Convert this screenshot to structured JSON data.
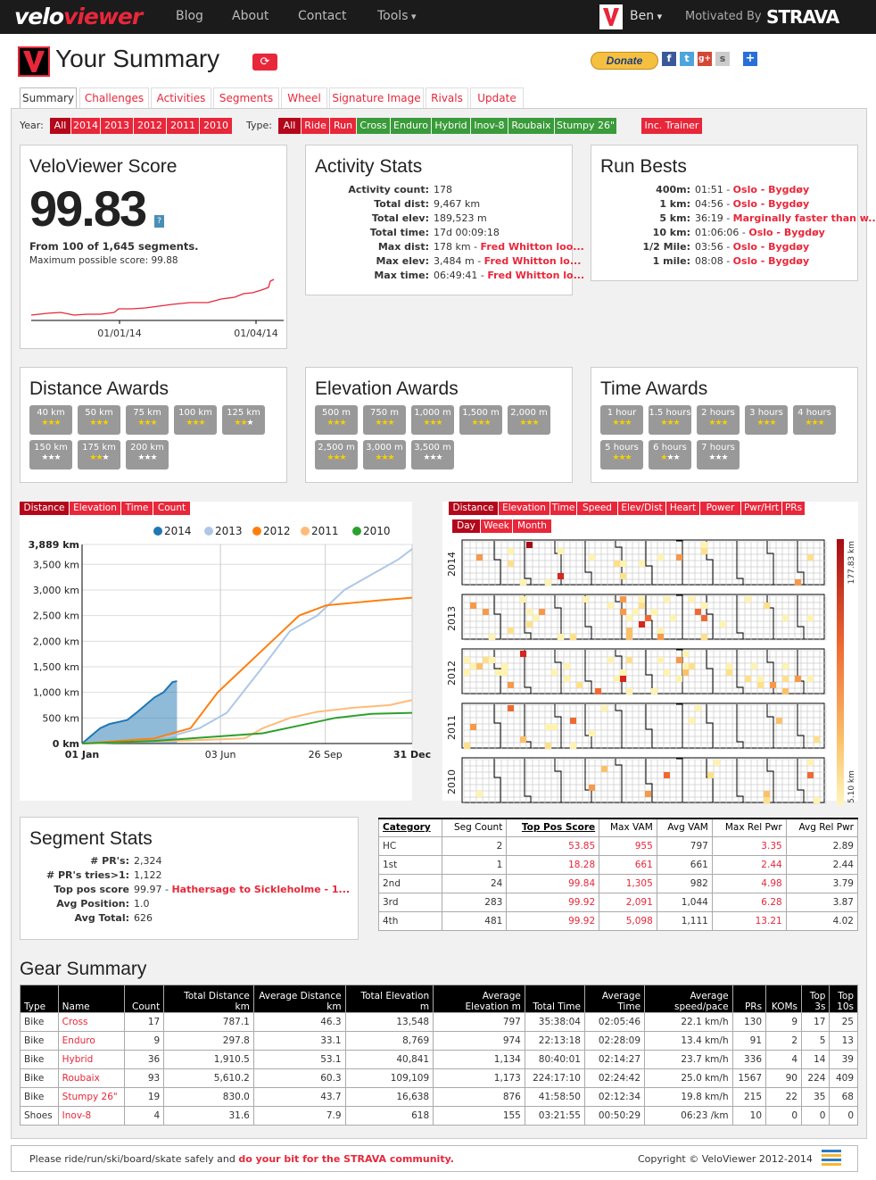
{
  "nav": {
    "brand_a": "velo",
    "brand_b": "viewer",
    "links": [
      "Blog",
      "About",
      "Contact",
      "Tools"
    ],
    "user": "Ben",
    "motivated": "Motivated By",
    "strava": "STRAVA"
  },
  "page": {
    "title": "Your Summary",
    "refresh_icon": "refresh-icon",
    "donate": "Donate",
    "social": [
      "f",
      "t",
      "g+",
      "s",
      "+"
    ]
  },
  "tabs": [
    "Summary",
    "Challenges",
    "Activities",
    "Segments",
    "Wheel",
    "Signature Image",
    "Rivals",
    "Update"
  ],
  "filters": {
    "year_label": "Year:",
    "years": [
      "All",
      "2014",
      "2013",
      "2012",
      "2011",
      "2010"
    ],
    "type_label": "Type:",
    "types": [
      "All",
      "Ride",
      "Run",
      "Cross",
      "Enduro",
      "Hybrid",
      "Inov-8",
      "Roubaix",
      "Stumpy 26\""
    ],
    "trainer": "Inc. Trainer"
  },
  "score": {
    "title": "VeloViewer Score",
    "value": "99.83",
    "help": "?",
    "from": "From 100 of 1,645 segments.",
    "max": "Maximum possible score: 99.88",
    "axis": [
      "01/01/14",
      "01/04/14"
    ]
  },
  "activity": {
    "title": "Activity Stats",
    "rows": [
      {
        "k": "Activity count:",
        "v": "178",
        "l": ""
      },
      {
        "k": "Total dist:",
        "v": "9,467 km",
        "l": ""
      },
      {
        "k": "Total elev:",
        "v": "189,523 m",
        "l": ""
      },
      {
        "k": "Total time:",
        "v": "17d 00:09:18",
        "l": ""
      },
      {
        "k": "Max dist:",
        "v": "178 km - ",
        "l": "Fred Whitton loo..."
      },
      {
        "k": "Max elev:",
        "v": "3,484 m - ",
        "l": "Fred Whitton lo..."
      },
      {
        "k": "Max time:",
        "v": "06:49:41 - ",
        "l": "Fred Whitton lo..."
      }
    ]
  },
  "runbests": {
    "title": "Run Bests",
    "rows": [
      {
        "k": "400m:",
        "v": "01:51 - ",
        "l": "Oslo - Bygdøy"
      },
      {
        "k": "1 km:",
        "v": "04:56 - ",
        "l": "Oslo - Bygdøy"
      },
      {
        "k": "5 km:",
        "v": "36:19 - ",
        "l": "Marginally faster than w..."
      },
      {
        "k": "10 km:",
        "v": "01:06:06 - ",
        "l": "Oslo - Bygdøy"
      },
      {
        "k": "1/2 Mile:",
        "v": "03:56 - ",
        "l": "Oslo - Bygdøy"
      },
      {
        "k": "1 mile:",
        "v": "08:08 - ",
        "l": "Oslo - Bygdøy"
      }
    ]
  },
  "dist_awards": {
    "title": "Distance Awards",
    "items": [
      [
        "40 km",
        "★★★"
      ],
      [
        "50 km",
        "★★★"
      ],
      [
        "75 km",
        "★★★"
      ],
      [
        "100 km",
        "★★★"
      ],
      [
        "125 km",
        "★★★"
      ],
      [
        "150 km",
        "★★★"
      ],
      [
        "175 km",
        "★★★"
      ],
      [
        "200 km",
        "★★★"
      ]
    ],
    "gold": [
      3,
      3,
      3,
      3,
      2,
      0,
      2,
      0
    ]
  },
  "elev_awards": {
    "title": "Elevation Awards",
    "items": [
      [
        "500 m",
        "★★★"
      ],
      [
        "750 m",
        "★★★"
      ],
      [
        "1,000 m",
        "★★★"
      ],
      [
        "1,500 m",
        "★★★"
      ],
      [
        "2,000 m",
        "★★★"
      ],
      [
        "2,500 m",
        "★★★"
      ],
      [
        "3,000 m",
        "★★★"
      ],
      [
        "3,500 m",
        "★★★"
      ]
    ],
    "gold": [
      3,
      3,
      3,
      3,
      3,
      3,
      3,
      0
    ]
  },
  "time_awards": {
    "title": "Time Awards",
    "items": [
      [
        "1 hour",
        "★★★"
      ],
      [
        "1.5 hours",
        "★★★"
      ],
      [
        "2 hours",
        "★★★"
      ],
      [
        "3 hours",
        "★★★"
      ],
      [
        "4 hours",
        "★★★"
      ],
      [
        "5 hours",
        "★★★"
      ],
      [
        "6 hours",
        "★★★"
      ],
      [
        "7 hours",
        "★★★"
      ]
    ],
    "gold": [
      3,
      3,
      3,
      3,
      3,
      3,
      1,
      0
    ]
  },
  "cum_tabs": [
    "Distance",
    "Elevation",
    "Time",
    "Count"
  ],
  "heat_tabs": [
    "Distance",
    "Elevation",
    "Time",
    "Speed",
    "Elev/Dist",
    "Heart",
    "Power",
    "Pwr/Hrt",
    "PRs"
  ],
  "heat_subtabs": [
    "Day",
    "Week",
    "Month"
  ],
  "heat": {
    "years": [
      "2014",
      "2013",
      "2012",
      "2011",
      "2010"
    ],
    "scale_max": "177.83 km",
    "scale_min": "5.10 km"
  },
  "chart_data": [
    {
      "type": "line",
      "ylabel": "",
      "yticks": [
        "3,889 km",
        "3,500 km",
        "3,000 km",
        "2,500 km",
        "2,000 km",
        "1,500 km",
        "1,000 km",
        "500 km",
        "0 km"
      ],
      "ylim": [
        0,
        3889
      ],
      "xticks": [
        "01 Jan",
        "03 Jun",
        "26 Sep",
        "31 Dec"
      ],
      "legend": "top",
      "series": [
        {
          "name": "2014",
          "color": "#1f77b4",
          "x": [
            0,
            10,
            20,
            30,
            40,
            50,
            60,
            70,
            80,
            90,
            100,
            105
          ],
          "y": [
            0,
            150,
            300,
            380,
            420,
            460,
            600,
            750,
            900,
            1000,
            1200,
            1220
          ]
        },
        {
          "name": "2013",
          "color": "#aec7e8",
          "x": [
            0,
            50,
            100,
            130,
            160,
            200,
            230,
            260,
            290,
            320,
            350,
            365
          ],
          "y": [
            0,
            50,
            150,
            300,
            600,
            1500,
            2200,
            2500,
            3000,
            3300,
            3600,
            3800
          ]
        },
        {
          "name": "2012",
          "color": "#ff7f0e",
          "x": [
            0,
            80,
            120,
            150,
            180,
            210,
            240,
            270,
            300,
            330,
            365
          ],
          "y": [
            0,
            100,
            300,
            1000,
            1500,
            2000,
            2500,
            2700,
            2750,
            2800,
            2850
          ]
        },
        {
          "name": "2011",
          "color": "#ffbb78",
          "x": [
            0,
            100,
            180,
            200,
            230,
            260,
            300,
            340,
            365
          ],
          "y": [
            0,
            50,
            100,
            300,
            500,
            620,
            700,
            750,
            850
          ]
        },
        {
          "name": "2010",
          "color": "#2ca02c",
          "x": [
            0,
            80,
            160,
            200,
            240,
            280,
            320,
            365
          ],
          "y": [
            0,
            50,
            150,
            200,
            350,
            500,
            580,
            600
          ]
        }
      ]
    }
  ],
  "segstats": {
    "title": "Segment Stats",
    "rows": [
      {
        "k": "# PR's:",
        "v": "2,324",
        "l": ""
      },
      {
        "k": "# PR's tries>1:",
        "v": "1,122",
        "l": ""
      },
      {
        "k": "Top pos score",
        "v": "99.97 - ",
        "l": "Hathersage to Sickleholme - 1..."
      },
      {
        "k": "Avg Position:",
        "v": "1.0",
        "l": ""
      },
      {
        "k": "Avg Total:",
        "v": "626",
        "l": ""
      }
    ]
  },
  "cat_table": {
    "headers": [
      "Category",
      "Seg Count",
      "Top Pos Score",
      "Max VAM",
      "Avg VAM",
      "Max Rel Pwr",
      "Avg Rel Pwr"
    ],
    "rows": [
      [
        "HC",
        "2",
        "53.85",
        "955",
        "797",
        "3.35",
        "2.89"
      ],
      [
        "1st",
        "1",
        "18.28",
        "661",
        "661",
        "2.44",
        "2.44"
      ],
      [
        "2nd",
        "24",
        "99.84",
        "1,305",
        "982",
        "4.98",
        "3.79"
      ],
      [
        "3rd",
        "283",
        "99.92",
        "2,091",
        "1,044",
        "6.28",
        "3.87"
      ],
      [
        "4th",
        "481",
        "99.92",
        "5,098",
        "1,111",
        "13.21",
        "4.02"
      ]
    ]
  },
  "gear": {
    "title": "Gear Summary",
    "headers": [
      "Type",
      "Name",
      "Count",
      "Total Distance km",
      "Average Distance km",
      "Total Elevation m",
      "Average Elevation m",
      "Total Time",
      "Average Time",
      "Average speed/pace",
      "PRs",
      "KOMs",
      "Top 3s",
      "Top 10s"
    ],
    "rows": [
      [
        "Bike",
        "Cross",
        "17",
        "787.1",
        "46.3",
        "13,548",
        "797",
        "35:38:04",
        "02:05:46",
        "22.1 km/h",
        "130",
        "9",
        "17",
        "25"
      ],
      [
        "Bike",
        "Enduro",
        "9",
        "297.8",
        "33.1",
        "8,769",
        "974",
        "22:13:18",
        "02:28:09",
        "13.4 km/h",
        "91",
        "2",
        "5",
        "13"
      ],
      [
        "Bike",
        "Hybrid",
        "36",
        "1,910.5",
        "53.1",
        "40,841",
        "1,134",
        "80:40:01",
        "02:14:27",
        "23.7 km/h",
        "336",
        "4",
        "14",
        "39"
      ],
      [
        "Bike",
        "Roubaix",
        "93",
        "5,610.2",
        "60.3",
        "109,109",
        "1,173",
        "224:17:10",
        "02:24:42",
        "25.0 km/h",
        "1567",
        "90",
        "224",
        "409"
      ],
      [
        "Bike",
        "Stumpy 26\"",
        "19",
        "830.0",
        "43.7",
        "16,638",
        "876",
        "41:58:50",
        "02:12:34",
        "19.8 km/h",
        "215",
        "22",
        "35",
        "68"
      ],
      [
        "Shoes",
        "Inov-8",
        "4",
        "31.6",
        "7.9",
        "618",
        "155",
        "03:21:55",
        "00:50:29",
        "06:23 /km",
        "10",
        "0",
        "0",
        "0"
      ]
    ]
  },
  "footer": {
    "left": "Please ride/run/ski/board/skate safely and ",
    "link": "do your bit for the STRAVA community.",
    "right": "Copyright © VeloViewer 2012-2014"
  }
}
